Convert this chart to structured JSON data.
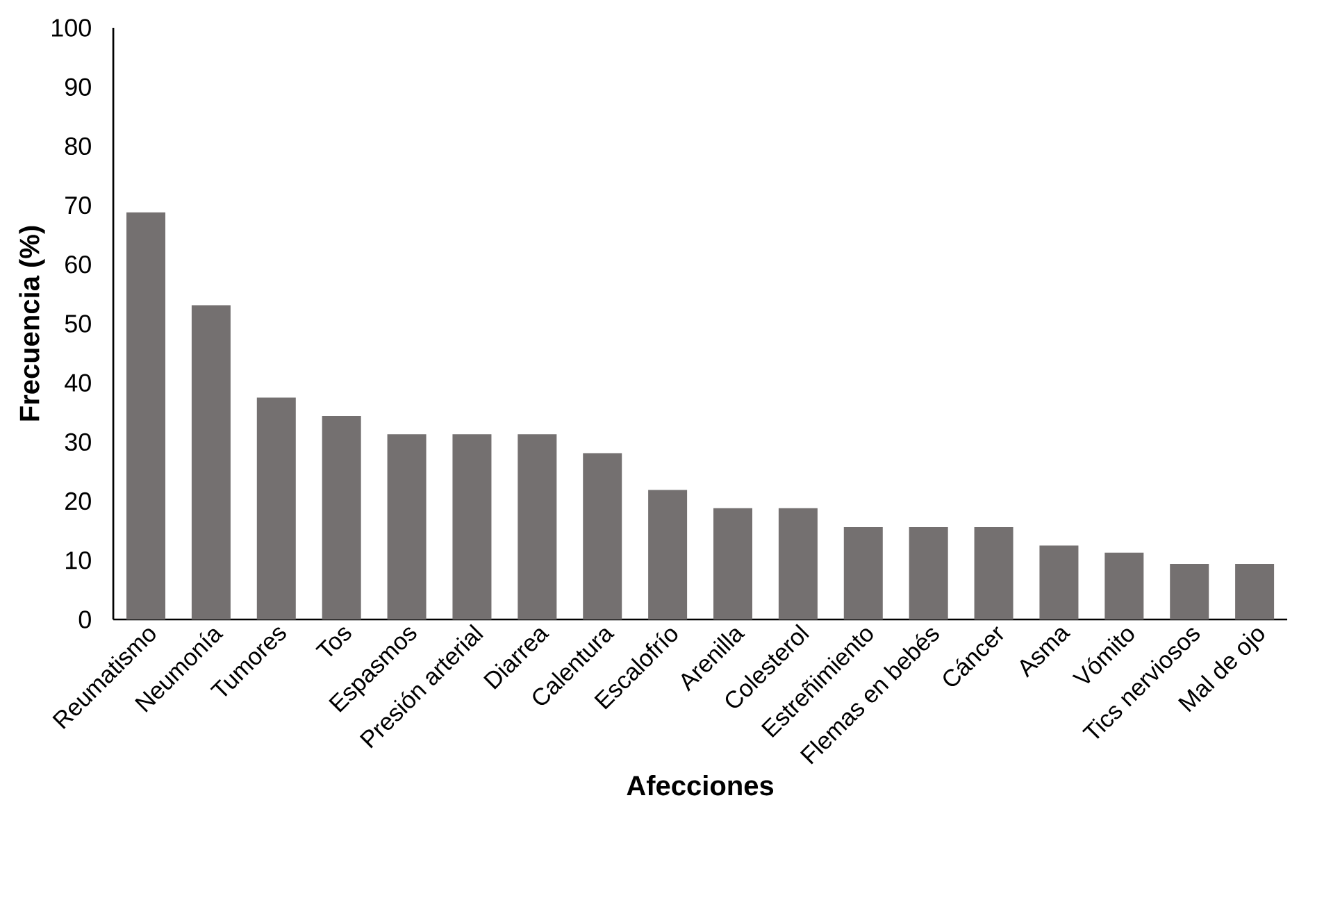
{
  "chart_data": {
    "type": "bar",
    "xlabel": "Afecciones",
    "ylabel": "Frecuencia (%)",
    "categories": [
      "Reumatismo",
      "Neumonía",
      "Tumores",
      "Tos",
      "Espasmos",
      "Presión arterial",
      "Diarrea",
      "Calentura",
      "Escalofrío",
      "Arenilla",
      "Colesterol",
      "Estreñimiento",
      "Flemas en bebés",
      "Cáncer",
      "Asma",
      "Vómito",
      "Tics nerviosos",
      "Mal de ojo"
    ],
    "values": [
      68.8,
      53.1,
      37.5,
      34.4,
      31.3,
      31.3,
      31.3,
      28.1,
      21.9,
      18.8,
      18.8,
      15.6,
      15.6,
      15.6,
      12.5,
      11.3,
      9.4,
      9.4
    ],
    "color": "#747070",
    "ylim": [
      0,
      100
    ],
    "yticks": [
      0,
      10,
      20,
      30,
      40,
      50,
      60,
      70,
      80,
      90,
      100
    ]
  }
}
